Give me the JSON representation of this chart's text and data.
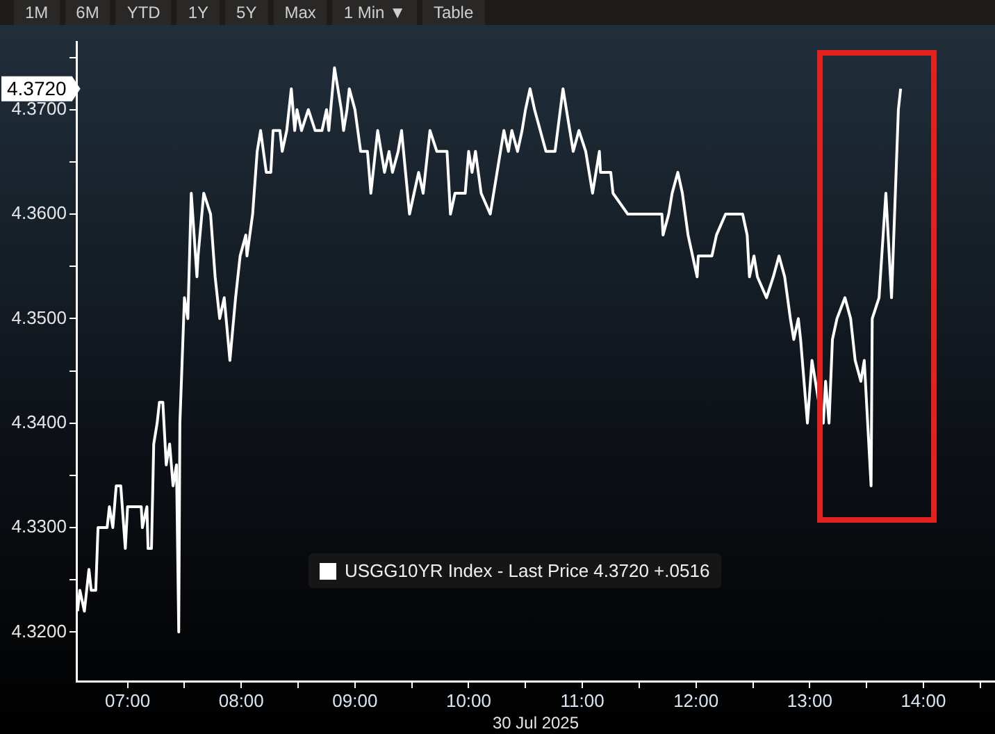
{
  "chart_data": {
    "type": "line",
    "xlabel": "30 Jul 2025",
    "x": [
      6.56,
      6.58,
      6.62,
      6.66,
      6.68,
      6.72,
      6.74,
      6.82,
      6.84,
      6.87,
      6.9,
      6.94,
      6.98,
      7.0,
      7.12,
      7.13,
      7.17,
      7.18,
      7.21,
      7.23,
      7.26,
      7.28,
      7.31,
      7.34,
      7.37,
      7.4,
      7.43,
      7.45,
      7.46,
      7.5,
      7.53,
      7.56,
      7.61,
      7.62,
      7.67,
      7.73,
      7.77,
      7.81,
      7.85,
      7.9,
      7.95,
      7.99,
      8.04,
      8.05,
      8.1,
      8.14,
      8.17,
      8.22,
      8.26,
      8.28,
      8.34,
      8.36,
      8.4,
      8.44,
      8.47,
      8.49,
      8.53,
      8.59,
      8.65,
      8.71,
      8.75,
      8.77,
      8.82,
      8.88,
      8.9,
      8.93,
      8.95,
      9.0,
      9.05,
      9.11,
      9.14,
      9.2,
      9.26,
      9.3,
      9.33,
      9.38,
      9.41,
      9.48,
      9.52,
      9.56,
      9.6,
      9.66,
      9.72,
      9.81,
      9.84,
      9.88,
      9.97,
      10.0,
      10.03,
      10.06,
      10.11,
      10.19,
      10.25,
      10.31,
      10.35,
      10.38,
      10.43,
      10.47,
      10.5,
      10.54,
      10.58,
      10.63,
      10.68,
      10.76,
      10.83,
      10.86,
      10.92,
      10.97,
      11.03,
      11.09,
      11.15,
      11.16,
      11.25,
      11.27,
      11.4,
      11.7,
      11.71,
      11.76,
      11.79,
      11.84,
      11.88,
      11.93,
      12.01,
      12.02,
      12.14,
      12.18,
      12.26,
      12.41,
      12.45,
      12.47,
      12.51,
      12.54,
      12.62,
      12.68,
      12.73,
      12.78,
      12.83,
      12.86,
      12.9,
      12.92,
      12.98,
      13.02,
      13.08,
      13.12,
      13.14,
      13.17,
      13.2,
      13.24,
      13.31,
      13.36,
      13.4,
      13.45,
      13.48,
      13.54,
      13.55,
      13.61,
      13.67,
      13.72,
      13.78,
      13.8
    ],
    "series": [
      {
        "name": "USGG10YR Index - Last Price 4.3720 +.0516",
        "color": "#ffffff",
        "values": [
          4.322,
          4.324,
          4.322,
          4.326,
          4.324,
          4.324,
          4.33,
          4.33,
          4.332,
          4.33,
          4.334,
          4.334,
          4.328,
          4.332,
          4.332,
          4.33,
          4.332,
          4.328,
          4.328,
          4.338,
          4.34,
          4.342,
          4.342,
          4.336,
          4.338,
          4.334,
          4.336,
          4.32,
          4.34,
          4.352,
          4.35,
          4.362,
          4.354,
          4.356,
          4.362,
          4.36,
          4.354,
          4.35,
          4.352,
          4.346,
          4.352,
          4.356,
          4.358,
          4.356,
          4.36,
          4.366,
          4.368,
          4.364,
          4.364,
          4.368,
          4.368,
          4.366,
          4.368,
          4.372,
          4.368,
          4.37,
          4.368,
          4.37,
          4.368,
          4.368,
          4.37,
          4.368,
          4.374,
          4.37,
          4.368,
          4.37,
          4.372,
          4.37,
          4.366,
          4.366,
          4.362,
          4.368,
          4.364,
          4.366,
          4.364,
          4.366,
          4.368,
          4.36,
          4.362,
          4.364,
          4.362,
          4.368,
          4.366,
          4.366,
          4.36,
          4.362,
          4.362,
          4.366,
          4.364,
          4.366,
          4.362,
          4.36,
          4.364,
          4.368,
          4.366,
          4.368,
          4.366,
          4.368,
          4.37,
          4.372,
          4.37,
          4.368,
          4.366,
          4.366,
          4.372,
          4.37,
          4.366,
          4.368,
          4.366,
          4.362,
          4.366,
          4.364,
          4.364,
          4.362,
          4.36,
          4.36,
          4.358,
          4.36,
          4.362,
          4.364,
          4.362,
          4.358,
          4.354,
          4.356,
          4.356,
          4.358,
          4.36,
          4.36,
          4.358,
          4.354,
          4.356,
          4.354,
          4.352,
          4.354,
          4.356,
          4.354,
          4.35,
          4.348,
          4.35,
          4.348,
          4.34,
          4.346,
          4.342,
          4.34,
          4.344,
          4.34,
          4.348,
          4.35,
          4.352,
          4.35,
          4.346,
          4.344,
          4.346,
          4.334,
          4.35,
          4.352,
          4.362,
          4.352,
          4.37,
          4.372
        ]
      }
    ],
    "xlim": [
      6.55,
      14.63
    ],
    "xticks": [
      {
        "value": 7,
        "label": "07:00"
      },
      {
        "value": 7.5,
        "label": null
      },
      {
        "value": 8,
        "label": "08:00"
      },
      {
        "value": 8.5,
        "label": null
      },
      {
        "value": 9,
        "label": "09:00"
      },
      {
        "value": 9.5,
        "label": null
      },
      {
        "value": 10,
        "label": "10:00"
      },
      {
        "value": 10.5,
        "label": null
      },
      {
        "value": 11,
        "label": "11:00"
      },
      {
        "value": 11.5,
        "label": null
      },
      {
        "value": 12,
        "label": "12:00"
      },
      {
        "value": 12.5,
        "label": null
      },
      {
        "value": 13,
        "label": "13:00"
      },
      {
        "value": 13.5,
        "label": null
      },
      {
        "value": 14,
        "label": "14:00"
      },
      {
        "value": 14.5,
        "label": null
      }
    ],
    "ylim": [
      4.3153,
      4.3765
    ],
    "yticks": [
      {
        "value": 4.32,
        "label": "4.3200"
      },
      {
        "value": 4.325,
        "label": null
      },
      {
        "value": 4.33,
        "label": "4.3300"
      },
      {
        "value": 4.335,
        "label": null
      },
      {
        "value": 4.34,
        "label": "4.3400"
      },
      {
        "value": 4.345,
        "label": null
      },
      {
        "value": 4.35,
        "label": "4.3500"
      },
      {
        "value": 4.355,
        "label": null
      },
      {
        "value": 4.36,
        "label": "4.3600"
      },
      {
        "value": 4.365,
        "label": null
      },
      {
        "value": 4.37,
        "label": "4.3700"
      },
      {
        "value": 4.375,
        "label": null
      }
    ],
    "grid": false,
    "legend": "bottom",
    "annotations": [
      "1M",
      "6M",
      "YTD",
      "1Y",
      "5Y",
      "Max",
      "1 Min ▼",
      "Table",
      "4.3720"
    ]
  }
}
